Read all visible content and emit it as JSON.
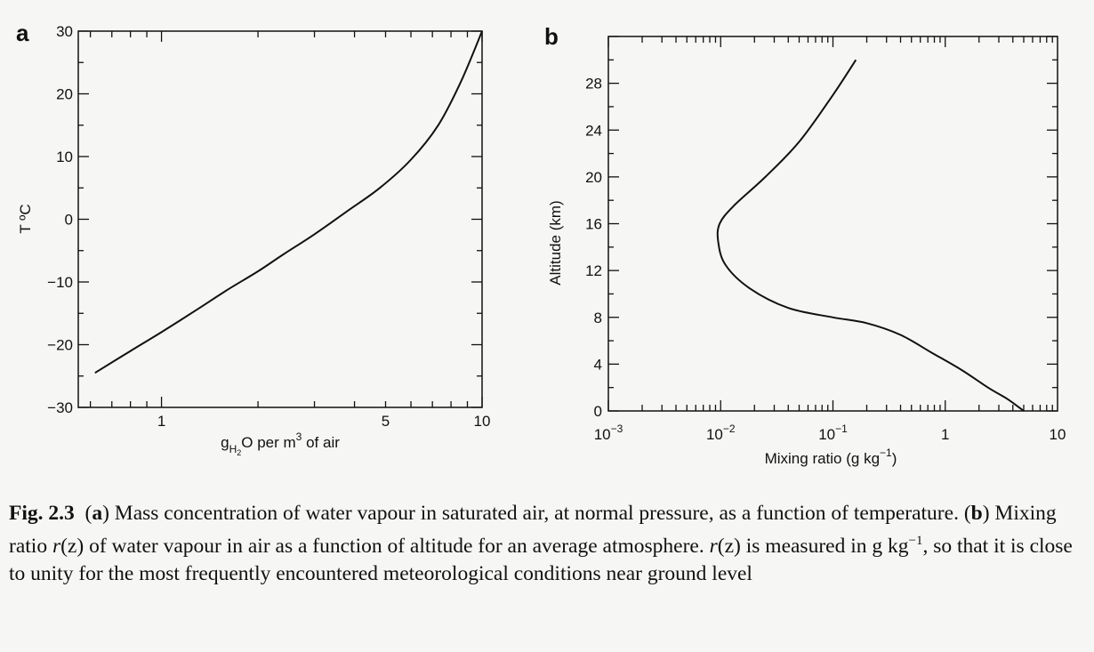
{
  "panels": {
    "a": {
      "letter": "a",
      "ylabel": "T ºC",
      "xlabel_parts": {
        "g": "g",
        "h2o": "H",
        "two": "2",
        "o": "O",
        "rest1": " per m",
        "cube": "3",
        "rest2": " of air"
      }
    },
    "b": {
      "letter": "b",
      "ylabel": "Altitude (km)",
      "xlabel_parts": {
        "main": "Mixing ratio (g kg",
        "sup": "−1",
        "close": ")"
      }
    }
  },
  "chart_data": [
    {
      "type": "line",
      "panel": "a",
      "xscale": "log",
      "xlim": [
        0.55,
        10
      ],
      "ylim": [
        -30,
        30
      ],
      "xticks": [
        {
          "value": 1,
          "label": "1"
        },
        {
          "value": 5,
          "label": "5"
        },
        {
          "value": 10,
          "label": "10"
        }
      ],
      "yticks": [
        {
          "value": 30,
          "label": "30"
        },
        {
          "value": 20,
          "label": "20"
        },
        {
          "value": 10,
          "label": "10"
        },
        {
          "value": 0,
          "label": "0"
        },
        {
          "value": -10,
          "label": "−10"
        },
        {
          "value": -20,
          "label": "−20"
        },
        {
          "value": -30,
          "label": "−30"
        }
      ],
      "x": [
        0.62,
        0.8,
        1.0,
        1.3,
        1.6,
        2.0,
        2.4,
        3.0,
        3.8,
        4.8,
        6.0,
        7.3,
        8.6,
        10.0
      ],
      "y": [
        -24.5,
        -21.0,
        -18.0,
        -14.3,
        -11.3,
        -8.3,
        -5.6,
        -2.4,
        1.3,
        5.0,
        9.5,
        15.0,
        22.0,
        30.0
      ],
      "grid": false
    },
    {
      "type": "line",
      "panel": "b",
      "xscale": "log",
      "xlim": [
        0.001,
        10
      ],
      "ylim": [
        0,
        32
      ],
      "xticks": [
        {
          "value": 0.001,
          "base": "10",
          "exp": "−3"
        },
        {
          "value": 0.01,
          "base": "10",
          "exp": "−2"
        },
        {
          "value": 0.1,
          "base": "10",
          "exp": "−1"
        },
        {
          "value": 1,
          "base": "1",
          "exp": ""
        },
        {
          "value": 10,
          "base": "10",
          "exp": ""
        }
      ],
      "yticks": [
        {
          "value": 0,
          "label": "0"
        },
        {
          "value": 4,
          "label": "4"
        },
        {
          "value": 8,
          "label": "8"
        },
        {
          "value": 12,
          "label": "12"
        },
        {
          "value": 16,
          "label": "16"
        },
        {
          "value": 20,
          "label": "20"
        },
        {
          "value": 24,
          "label": "24"
        },
        {
          "value": 28,
          "label": "28"
        }
      ],
      "x": [
        5.0,
        3.6,
        2.4,
        1.4,
        0.75,
        0.4,
        0.2,
        0.1,
        0.04,
        0.018,
        0.011,
        0.0095,
        0.0098,
        0.013,
        0.025,
        0.05,
        0.1,
        0.16
      ],
      "y": [
        0,
        1,
        2,
        3.5,
        5,
        6.5,
        7.5,
        8.0,
        8.8,
        10.5,
        12.5,
        14.5,
        16.0,
        17.5,
        20.0,
        23.0,
        27.0,
        30.0
      ],
      "grid": false
    }
  ],
  "caption": {
    "label": "Fig. 2.3",
    "a_mark": "a",
    "a_text": " Mass concentration of water vapour in saturated air, at normal pressure, as a function of temperature. (",
    "b_mark": "b",
    "b_text1": ") Mixing ratio ",
    "r1": "r",
    "z1": "(z)",
    "b_text2": " of water vapour in air as a function of altitude for an average atmosphere. ",
    "r2": "r",
    "z2": "(z)",
    "b_text3": " is measured in g kg",
    "sup": "−1",
    "b_text4": ", so that it is close to unity for the most frequently encountered meteorological conditions near ground level"
  }
}
